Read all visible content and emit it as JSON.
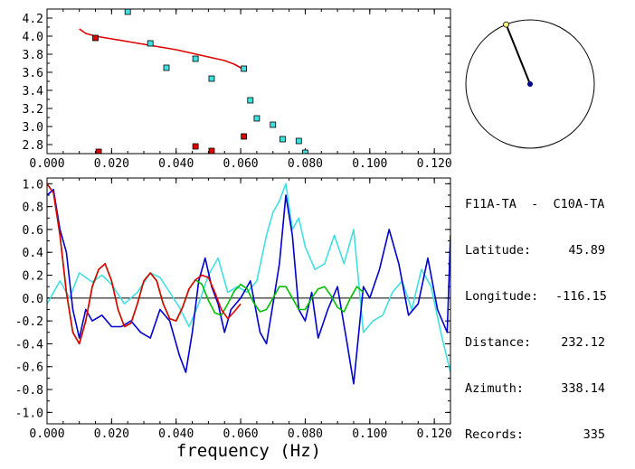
{
  "station": {
    "title": "F11A-TA  -  C10A-TA",
    "rows": [
      {
        "label": "Latitude:",
        "value": "45.89"
      },
      {
        "label": "Longitude:",
        "value": "-116.15"
      },
      {
        "label": "Distance:",
        "value": "232.12"
      },
      {
        "label": "Azimuth:",
        "value": "338.14"
      },
      {
        "label": "Records:",
        "value": "335"
      }
    ]
  },
  "compass": {
    "azimuth_deg": 338.14,
    "needle_color": "#000000",
    "center_color": "#00008b",
    "tip_color": "#ffff80"
  },
  "chart_data": [
    {
      "type": "scatter",
      "title": "",
      "xlabel": "",
      "ylabel": "",
      "xlim": [
        0.0,
        0.125
      ],
      "ylim": [
        2.7,
        4.3
      ],
      "xticks": [
        0.0,
        0.02,
        0.04,
        0.06,
        0.08,
        0.1,
        0.12
      ],
      "xtick_labels": [
        "0.000",
        "0.020",
        "0.040",
        "0.060",
        "0.080",
        "0.100",
        "0.120"
      ],
      "yticks": [
        2.8,
        3.0,
        3.2,
        3.4,
        3.6,
        3.8,
        4.0,
        4.2
      ],
      "ytick_labels": [
        "2.8",
        "3.0",
        "3.2",
        "3.4",
        "3.6",
        "3.8",
        "4.0",
        "4.2"
      ],
      "series": [
        {
          "kind": "line",
          "color": "#e00000",
          "x": [
            0.01,
            0.012,
            0.015,
            0.02,
            0.025,
            0.03,
            0.035,
            0.04,
            0.045,
            0.05,
            0.055,
            0.058,
            0.06,
            0.0615
          ],
          "y": [
            4.08,
            4.03,
            4.0,
            3.97,
            3.94,
            3.91,
            3.88,
            3.85,
            3.81,
            3.77,
            3.73,
            3.69,
            3.65,
            3.61
          ]
        },
        {
          "kind": "points",
          "color": "#40e0e0",
          "x": [
            0.025,
            0.032,
            0.037,
            0.046,
            0.051,
            0.061,
            0.063,
            0.065,
            0.07,
            0.073,
            0.078,
            0.08
          ],
          "y": [
            4.27,
            3.92,
            3.65,
            3.75,
            3.53,
            3.64,
            3.29,
            3.09,
            3.02,
            2.86,
            2.84,
            2.71
          ]
        },
        {
          "kind": "points",
          "color": "#e00000",
          "x": [
            0.015,
            0.016,
            0.046,
            0.051,
            0.061
          ],
          "y": [
            3.98,
            2.72,
            2.78,
            2.73,
            2.89
          ]
        }
      ]
    },
    {
      "type": "line",
      "title": "",
      "xlabel": "frequency (Hz)",
      "ylabel": "",
      "xlim": [
        0.0,
        0.125
      ],
      "ylim": [
        -1.1,
        1.05
      ],
      "xticks": [
        0.0,
        0.02,
        0.04,
        0.06,
        0.08,
        0.1,
        0.12
      ],
      "xtick_labels": [
        "0.000",
        "0.020",
        "0.040",
        "0.060",
        "0.080",
        "0.100",
        "0.120"
      ],
      "yticks": [
        -1.0,
        -0.8,
        -0.6,
        -0.4,
        -0.2,
        0.0,
        0.2,
        0.4,
        0.6,
        0.8,
        1.0
      ],
      "ytick_labels": [
        "-1.0",
        "-0.8",
        "-0.6",
        "-0.4",
        "-0.2",
        "0.0",
        "0.2",
        "0.4",
        "0.6",
        "0.8",
        "1.0"
      ],
      "zero_line": true,
      "series": [
        {
          "color": "#40e0e0",
          "x": [
            0.0,
            0.004,
            0.007,
            0.01,
            0.014,
            0.017,
            0.02,
            0.024,
            0.028,
            0.032,
            0.035,
            0.038,
            0.041,
            0.044,
            0.047,
            0.05,
            0.053,
            0.056,
            0.059,
            0.062,
            0.065,
            0.068,
            0.07,
            0.072,
            0.074,
            0.076,
            0.078,
            0.08,
            0.083,
            0.086,
            0.089,
            0.092,
            0.095,
            0.098,
            0.101,
            0.104,
            0.107,
            0.11,
            0.113,
            0.116,
            0.119,
            0.122,
            0.125
          ],
          "y": [
            -0.05,
            0.15,
            0.0,
            0.22,
            0.14,
            0.2,
            0.12,
            -0.05,
            0.05,
            0.22,
            0.18,
            0.05,
            -0.08,
            -0.25,
            -0.05,
            0.2,
            0.35,
            0.05,
            0.1,
            0.05,
            0.15,
            0.55,
            0.75,
            0.85,
            1.0,
            0.6,
            0.7,
            0.45,
            0.25,
            0.3,
            0.55,
            0.3,
            0.6,
            -0.3,
            -0.2,
            -0.15,
            0.05,
            0.15,
            -0.1,
            0.25,
            0.1,
            -0.3,
            -0.65
          ]
        },
        {
          "color": "#0000d0",
          "x": [
            0.0,
            0.002,
            0.004,
            0.006,
            0.008,
            0.01,
            0.012,
            0.014,
            0.017,
            0.02,
            0.023,
            0.026,
            0.029,
            0.032,
            0.035,
            0.038,
            0.041,
            0.043,
            0.045,
            0.047,
            0.049,
            0.051,
            0.053,
            0.055,
            0.057,
            0.06,
            0.063,
            0.066,
            0.068,
            0.07,
            0.072,
            0.074,
            0.076,
            0.078,
            0.08,
            0.082,
            0.084,
            0.087,
            0.09,
            0.093,
            0.095,
            0.098,
            0.1,
            0.103,
            0.106,
            0.109,
            0.112,
            0.115,
            0.118,
            0.121,
            0.124,
            0.125
          ],
          "y": [
            0.9,
            0.95,
            0.6,
            0.4,
            -0.1,
            -0.35,
            -0.1,
            -0.2,
            -0.15,
            -0.25,
            -0.25,
            -0.2,
            -0.3,
            -0.35,
            -0.1,
            -0.2,
            -0.5,
            -0.65,
            -0.3,
            0.15,
            0.35,
            0.1,
            -0.05,
            -0.3,
            -0.1,
            0.0,
            0.15,
            -0.3,
            -0.4,
            -0.05,
            0.3,
            0.9,
            0.55,
            -0.1,
            -0.2,
            0.05,
            -0.35,
            -0.1,
            0.1,
            -0.4,
            -0.75,
            0.1,
            0.0,
            0.25,
            0.6,
            0.3,
            -0.15,
            -0.05,
            0.35,
            -0.1,
            -0.3,
            0.55
          ]
        },
        {
          "color": "#00c000",
          "x": [
            0.0,
            0.002,
            0.004,
            0.006,
            0.008,
            0.01,
            0.012,
            0.014,
            0.016,
            0.018,
            0.02,
            0.022,
            0.024,
            0.026,
            0.028,
            0.03,
            0.032,
            0.034,
            0.036,
            0.038,
            0.04,
            0.042,
            0.044,
            0.046,
            0.048,
            0.05,
            0.052,
            0.054,
            0.056,
            0.058,
            0.06,
            0.062,
            0.064,
            0.066,
            0.068,
            0.07,
            0.072,
            0.074,
            0.076,
            0.078,
            0.08,
            0.082,
            0.084,
            0.086,
            0.088,
            0.09,
            0.092,
            0.094,
            0.096,
            0.098
          ],
          "y": [
            1.0,
            0.92,
            0.55,
            0.05,
            -0.3,
            -0.4,
            -0.2,
            0.1,
            0.25,
            0.3,
            0.15,
            -0.1,
            -0.25,
            -0.22,
            -0.05,
            0.15,
            0.22,
            0.15,
            -0.05,
            -0.18,
            -0.2,
            -0.08,
            0.08,
            0.16,
            0.12,
            -0.02,
            -0.13,
            -0.15,
            -0.05,
            0.06,
            0.12,
            0.08,
            -0.04,
            -0.12,
            -0.1,
            0.0,
            0.1,
            0.1,
            0.0,
            -0.1,
            -0.1,
            0.0,
            0.08,
            0.1,
            0.02,
            -0.08,
            -0.12,
            0.0,
            0.1,
            0.05
          ]
        },
        {
          "color": "#e00000",
          "x": [
            0.0,
            0.002,
            0.004,
            0.006,
            0.008,
            0.01,
            0.012,
            0.014,
            0.016,
            0.018,
            0.02,
            0.022,
            0.024,
            0.026,
            0.028,
            0.03,
            0.032,
            0.034,
            0.036,
            0.038,
            0.04,
            0.042,
            0.044,
            0.046,
            0.048,
            0.05,
            0.052,
            0.054,
            0.056,
            0.058,
            0.06
          ],
          "y": [
            1.0,
            0.92,
            0.55,
            0.05,
            -0.3,
            -0.4,
            -0.2,
            0.1,
            0.25,
            0.3,
            0.15,
            -0.1,
            -0.25,
            -0.22,
            -0.05,
            0.15,
            0.22,
            0.15,
            -0.05,
            -0.18,
            -0.2,
            -0.08,
            0.08,
            0.16,
            0.2,
            0.18,
            0.05,
            -0.1,
            -0.18,
            -0.12,
            -0.05
          ]
        }
      ]
    }
  ]
}
